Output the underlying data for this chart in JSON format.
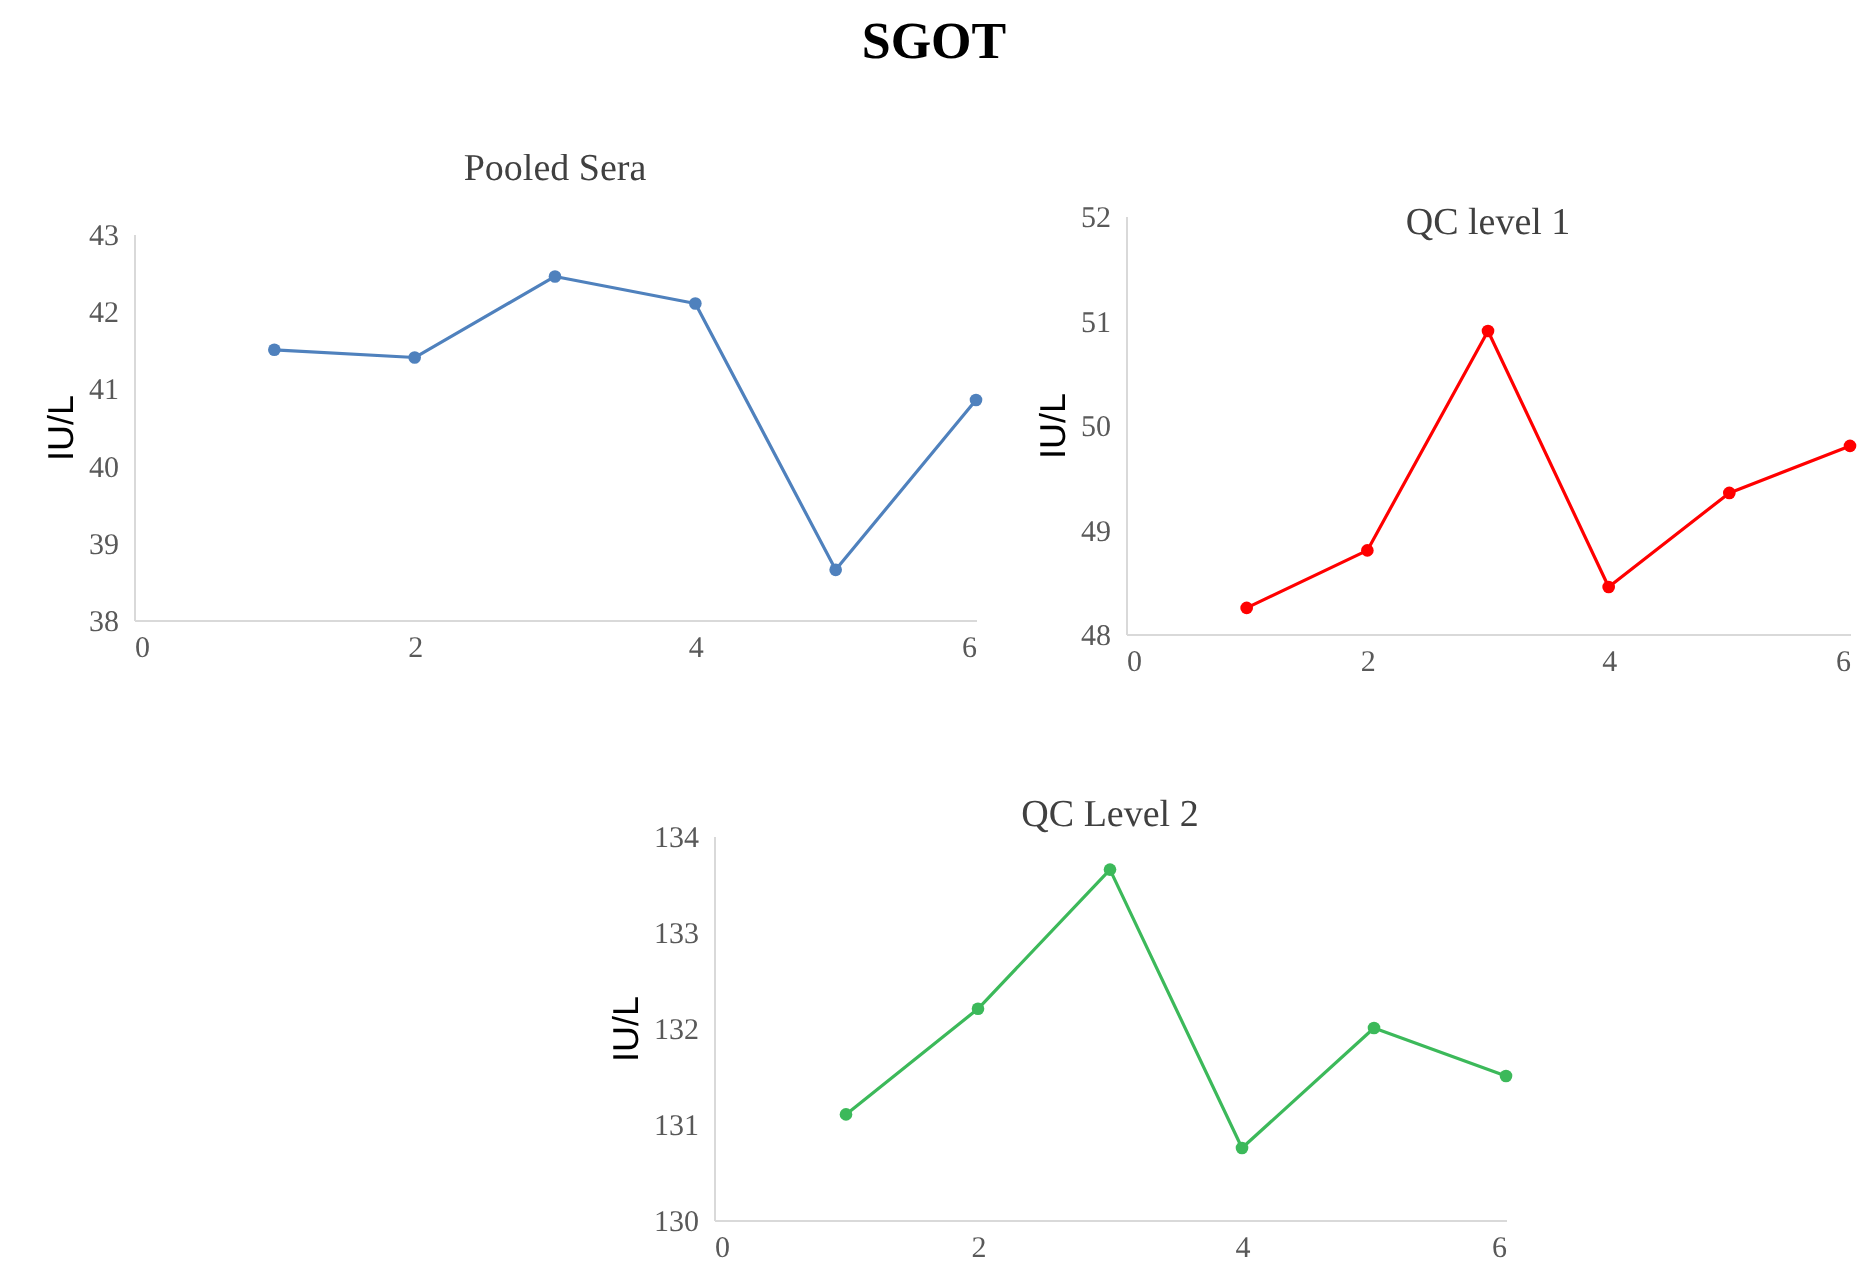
{
  "chart_data": [
    {
      "type": "line",
      "title": "Pooled Sera",
      "ylabel": "IU/L",
      "annotations": [
        "SGOT"
      ],
      "x": [
        1,
        2,
        3,
        4,
        5,
        6
      ],
      "xlim": [
        0,
        6
      ],
      "xticks": [
        0,
        2,
        4,
        6
      ],
      "ylim": [
        38,
        43
      ],
      "yticks": [
        38,
        39,
        40,
        41,
        42,
        43
      ],
      "grid": false,
      "legend": false,
      "marker": "circle",
      "line_style": "solid",
      "series": [
        {
          "color": "#4f81bd",
          "values": [
            41.5,
            41.4,
            42.45,
            42.1,
            38.65,
            40.85
          ]
        }
      ]
    },
    {
      "type": "line",
      "title": "QC level 1",
      "ylabel": "IU/L",
      "x": [
        1,
        2,
        3,
        4,
        5,
        6
      ],
      "xlim": [
        0,
        6
      ],
      "xticks": [
        0,
        2,
        4,
        6
      ],
      "ylim": [
        48,
        52
      ],
      "yticks": [
        48,
        49,
        50,
        51,
        52
      ],
      "grid": false,
      "legend": false,
      "marker": "circle",
      "line_style": "solid",
      "series": [
        {
          "color": "#ff0000",
          "values": [
            48.25,
            48.8,
            50.9,
            48.45,
            49.35,
            49.8
          ]
        }
      ]
    },
    {
      "type": "line",
      "title": "QC Level 2",
      "ylabel": "IU/L",
      "x": [
        1,
        2,
        3,
        4,
        5,
        6
      ],
      "xlim": [
        0,
        6
      ],
      "xticks": [
        0,
        2,
        4,
        6
      ],
      "ylim": [
        130,
        134
      ],
      "yticks": [
        130,
        131,
        132,
        133,
        134
      ],
      "grid": false,
      "legend": false,
      "marker": "circle",
      "line_style": "solid",
      "series": [
        {
          "color": "#3cb95a",
          "values": [
            131.1,
            132.2,
            133.65,
            130.75,
            132.0,
            131.5
          ]
        }
      ]
    }
  ]
}
